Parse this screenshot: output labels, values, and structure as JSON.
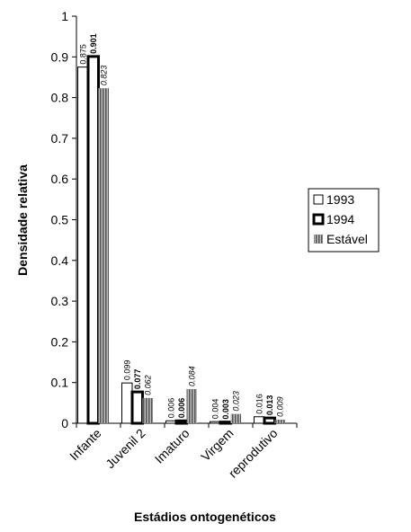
{
  "chart_data": {
    "type": "bar",
    "x_label": "Estádios ontogenéticos",
    "y_label": "Densidade relativa",
    "categories": [
      "Infante",
      "Juvenil 2",
      "Imaturo",
      "Virgem",
      "reprodutivo"
    ],
    "series": [
      {
        "name": "1993",
        "color": "#ffffff",
        "values": [
          0.875,
          0.099,
          0.006,
          0.004,
          0.016
        ]
      },
      {
        "name": "1994",
        "color": "#ffffff",
        "values": [
          0.901,
          0.077,
          0.006,
          0.003,
          0.013
        ]
      },
      {
        "name": "Estável",
        "color": "#888888",
        "values": [
          0.823,
          0.062,
          0.084,
          0.023,
          0.009
        ]
      }
    ],
    "ylim": [
      0,
      1
    ],
    "yticks": [
      0,
      0.1,
      0.2,
      0.3,
      0.4,
      0.5,
      0.6,
      0.7,
      0.8,
      0.9,
      1
    ],
    "legend": "right"
  }
}
